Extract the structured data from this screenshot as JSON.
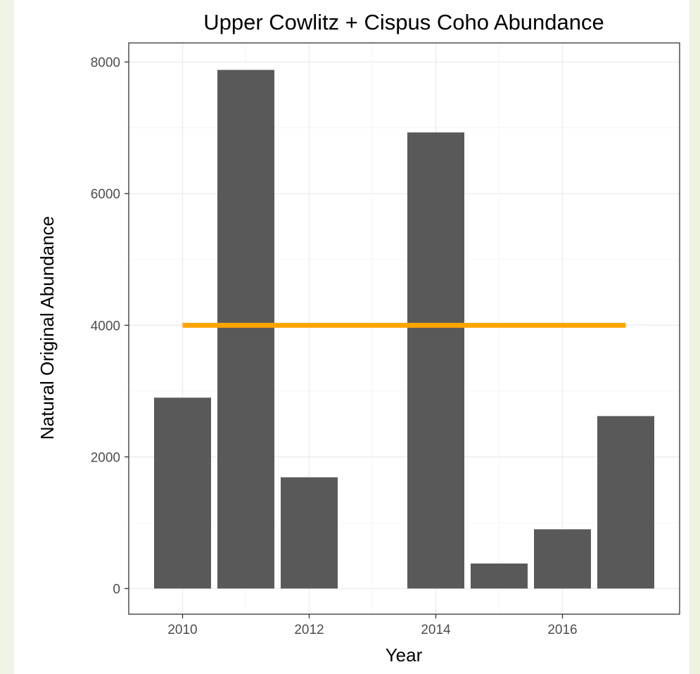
{
  "chart_data": {
    "type": "bar",
    "title": "Upper Cowlitz + Cispus Coho Abundance",
    "xlabel": "Year",
    "ylabel": "Natural Original Abundance",
    "x": [
      2010,
      2011,
      2012,
      2013,
      2014,
      2015,
      2016,
      2017
    ],
    "values": [
      2900,
      7880,
      1690,
      0,
      6930,
      380,
      900,
      2620
    ],
    "xlim": [
      2009.15,
      2017.85
    ],
    "ylim": [
      -390,
      8290
    ],
    "x_ticks": [
      2010,
      2012,
      2014,
      2016
    ],
    "y_ticks": [
      0,
      2000,
      4000,
      6000,
      8000
    ],
    "grid": true,
    "reference_line": {
      "y": 4000,
      "x_start": 2010,
      "x_end": 2017,
      "color": "#ffa500"
    },
    "bar_color": "#595959"
  }
}
